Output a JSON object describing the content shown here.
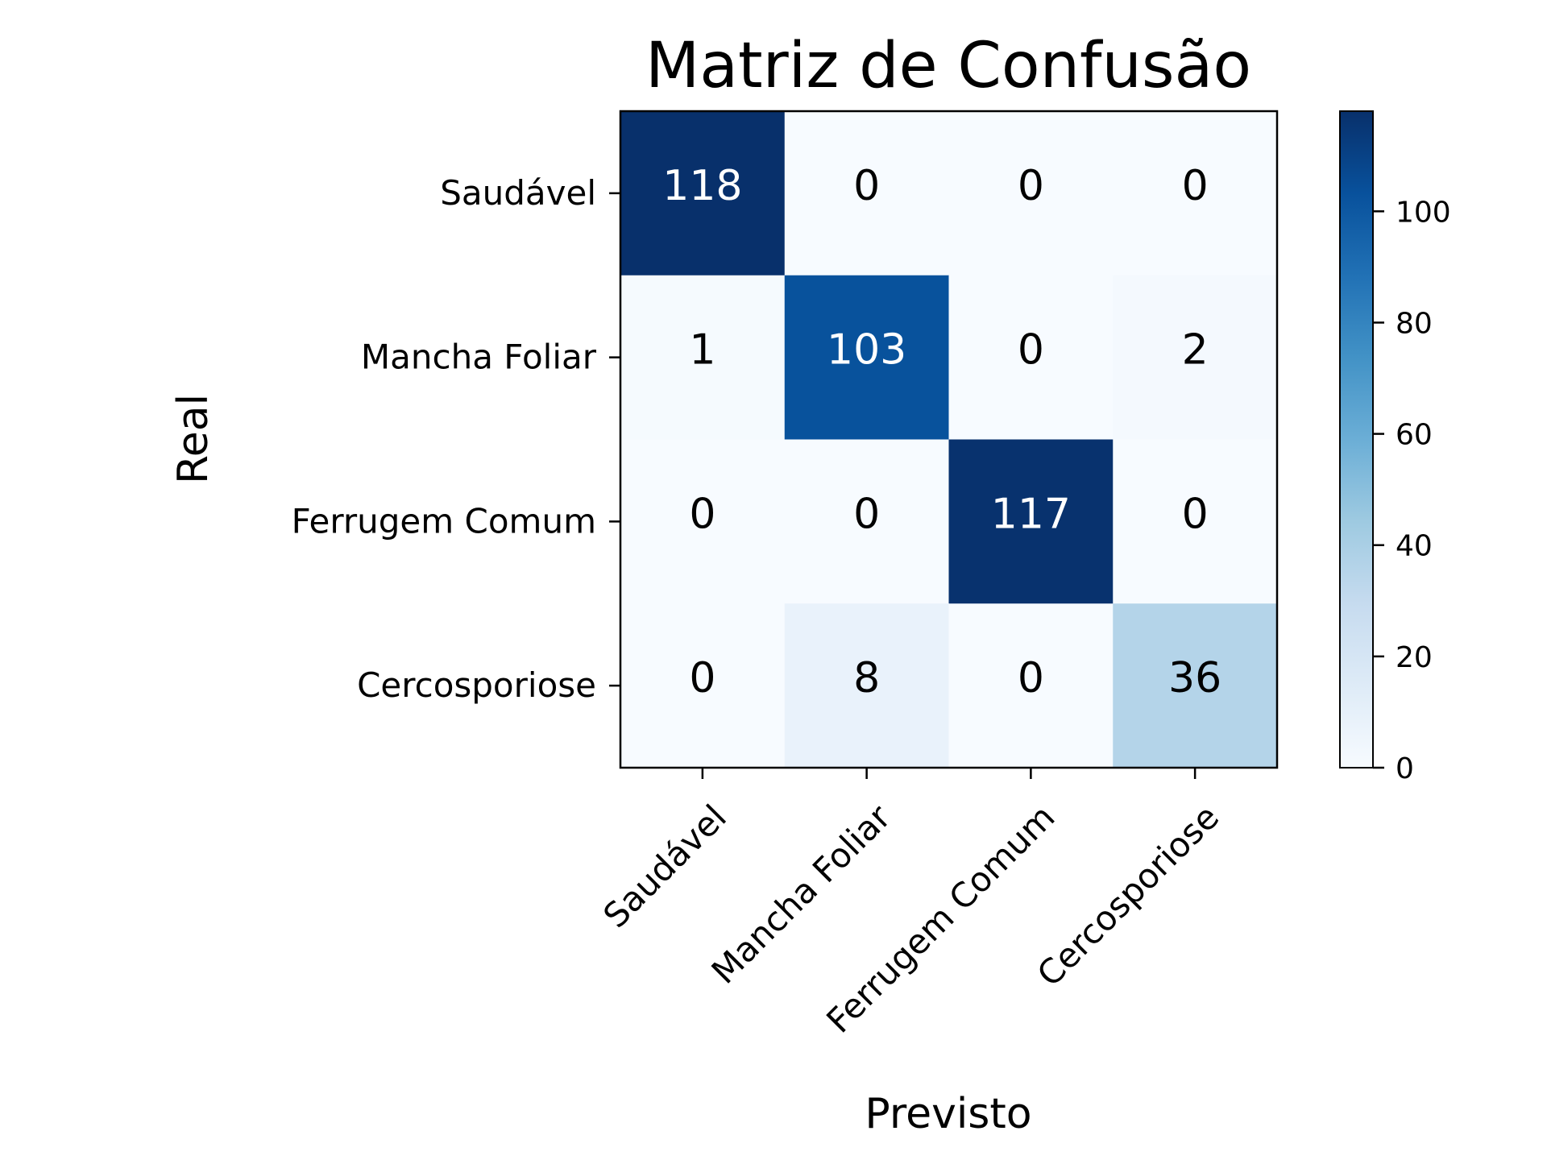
{
  "chart_data": {
    "type": "heatmap",
    "title": "Matriz de Confusão",
    "xlabel": "Previsto",
    "ylabel": "Real",
    "x_categories": [
      "Saudável",
      "Mancha Foliar",
      "Ferrugem Comum",
      "Cercosporiose"
    ],
    "y_categories": [
      "Saudável",
      "Mancha Foliar",
      "Ferrugem Comum",
      "Cercosporiose"
    ],
    "matrix": [
      [
        118,
        0,
        0,
        0
      ],
      [
        1,
        103,
        0,
        2
      ],
      [
        0,
        0,
        117,
        0
      ],
      [
        0,
        8,
        0,
        36
      ]
    ],
    "colormap": "Blues",
    "vmin": 0,
    "vmax": 118,
    "colorbar_ticks": [
      0,
      20,
      40,
      60,
      80,
      100
    ],
    "text_color_light": "#ffffff",
    "text_color_dark": "#000000"
  }
}
